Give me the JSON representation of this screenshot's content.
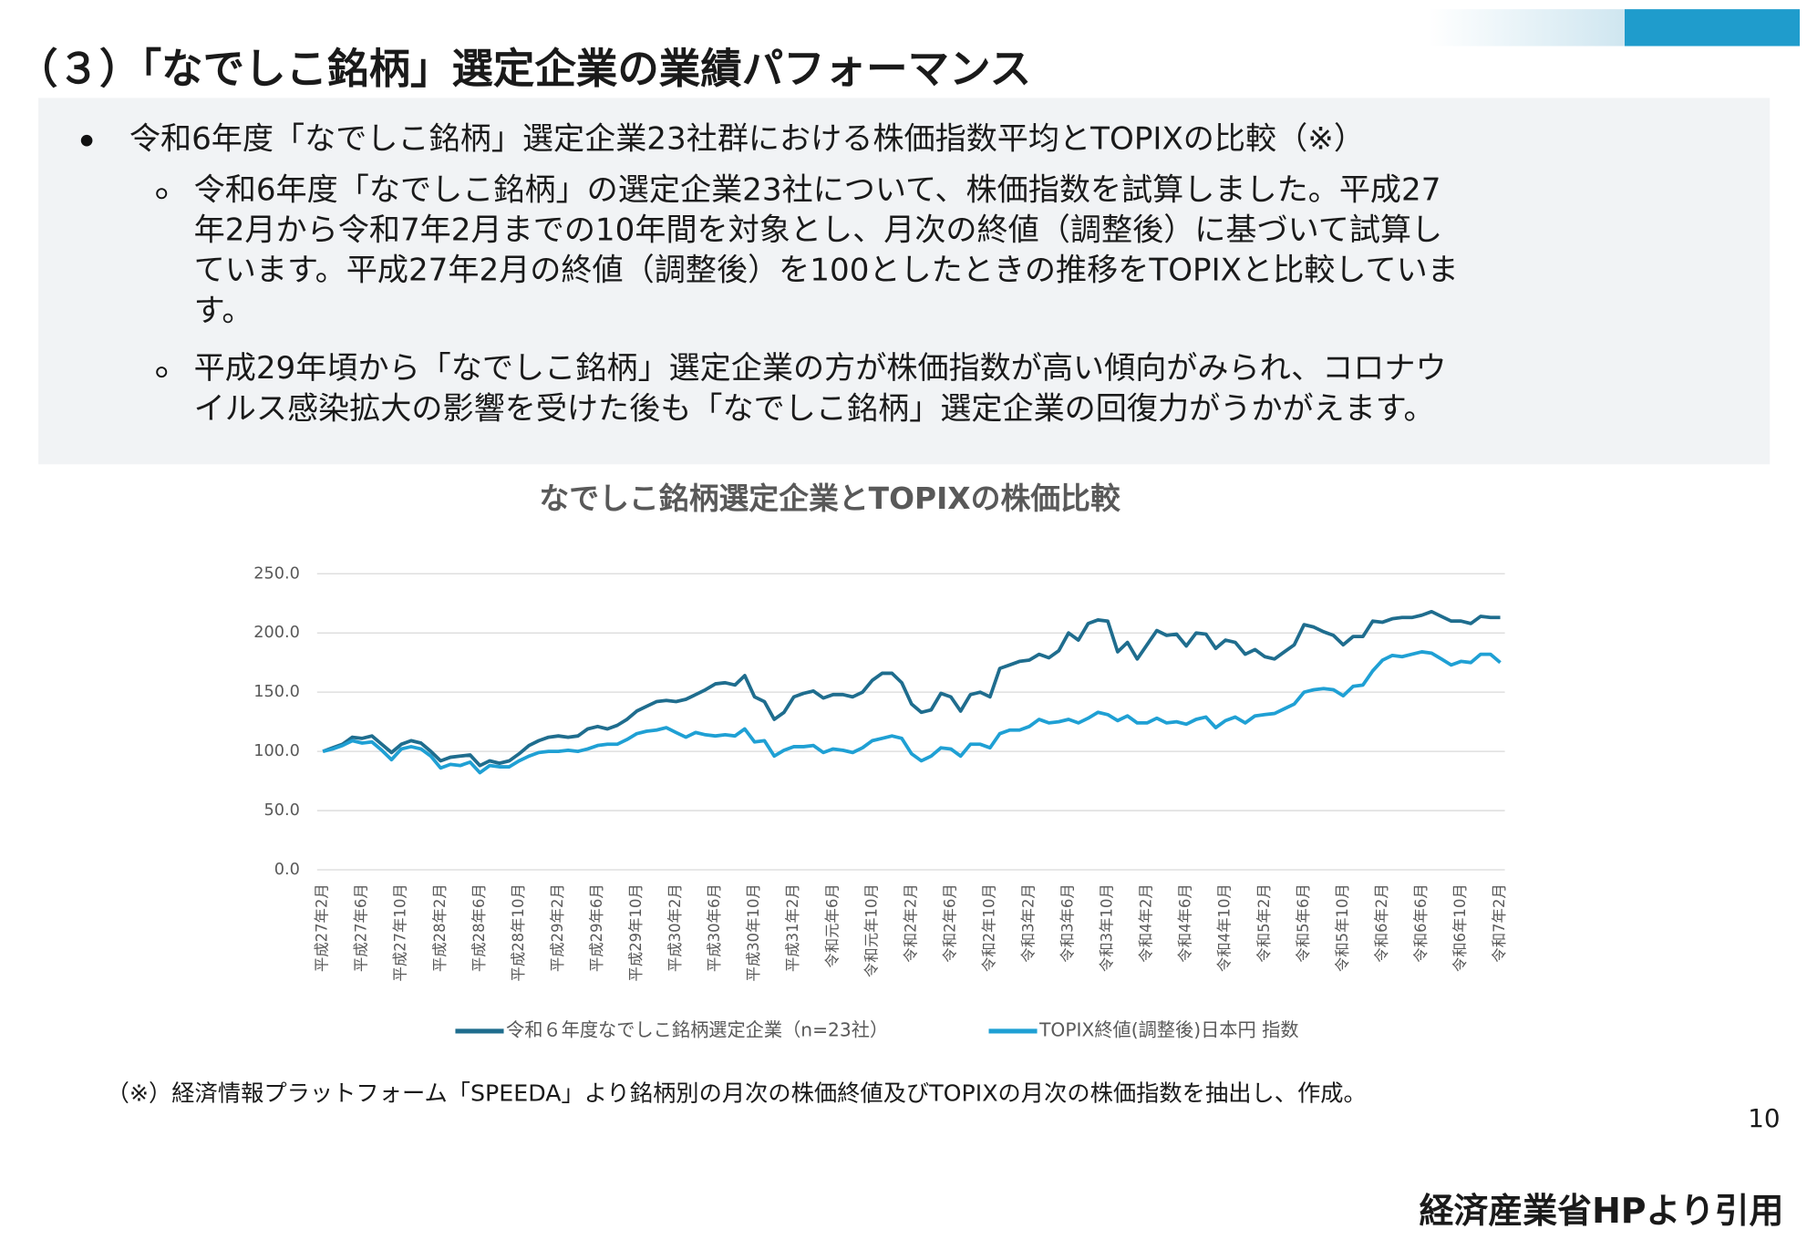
{
  "header": {
    "title": "（３）「なでしこ銘柄」選定企業の業績パフォーマンス"
  },
  "bullet": {
    "text": "令和6年度「なでしこ銘柄」選定企業23社群における株価指数平均とTOPIXの比較（※）",
    "items": [
      [
        "令和6年度「なでしこ銘柄」の選定企業23社について、株価指数を試算しました。平成27",
        "年2月から令和7年2月までの10年間を対象とし、月次の終値（調整後）に基づいて試算し",
        "ています。平成27年2月の終値（調整後）を100としたときの推移をTOPIXと比較していま",
        "す。"
      ],
      [
        "平成29年頃から「なでしこ銘柄」選定企業の方が株価指数が高い傾向がみられ、コロナウ",
        "イルス感染拡大の影響を受けた後も「なでしこ銘柄」選定企業の回復力がうかがえます。"
      ]
    ]
  },
  "chart_data": {
    "type": "line",
    "title": "なでしこ銘柄選定企業とTOPIXの株価比較",
    "categories": [
      "平成27年2月",
      null,
      null,
      null,
      "平成27年6月",
      null,
      null,
      null,
      "平成27年10月",
      null,
      null,
      null,
      "平成28年2月",
      null,
      null,
      null,
      "平成28年6月",
      null,
      null,
      null,
      "平成28年10月",
      null,
      null,
      null,
      "平成29年2月",
      null,
      null,
      null,
      "平成29年6月",
      null,
      null,
      null,
      "平成29年10月",
      null,
      null,
      null,
      "平成30年2月",
      null,
      null,
      null,
      "平成30年6月",
      null,
      null,
      null,
      "平成30年10月",
      null,
      null,
      null,
      "平成31年2月",
      null,
      null,
      null,
      "令和元年6月",
      null,
      null,
      null,
      "令和元年10月",
      null,
      null,
      null,
      "令和2年2月",
      null,
      null,
      null,
      "令和2年6月",
      null,
      null,
      null,
      "令和2年10月",
      null,
      null,
      null,
      "令和3年2月",
      null,
      null,
      null,
      "令和3年6月",
      null,
      null,
      null,
      "令和3年10月",
      null,
      null,
      null,
      "令和4年2月",
      null,
      null,
      null,
      "令和4年6月",
      null,
      null,
      null,
      "令和4年10月",
      null,
      null,
      null,
      "令和5年2月",
      null,
      null,
      null,
      "令和5年6月",
      null,
      null,
      null,
      "令和5年10月",
      null,
      null,
      null,
      "令和6年2月",
      null,
      null,
      null,
      "令和6年6月",
      null,
      null,
      null,
      "令和6年10月",
      null,
      null,
      null,
      "令和7年2月"
    ],
    "series": [
      {
        "name": "令和６年度なでしこ銘柄選定企業（n=23社）",
        "color": "#1f6d8e",
        "values": [
          100,
          103,
          106,
          112,
          111,
          113,
          106,
          99,
          106,
          109,
          107,
          100,
          92,
          95,
          96,
          97,
          88,
          92,
          90,
          92,
          98,
          105,
          109,
          112,
          113,
          112,
          113,
          119,
          121,
          119,
          122,
          127,
          134,
          138,
          142,
          143,
          142,
          144,
          148,
          152,
          157,
          158,
          156,
          164,
          146,
          142,
          127,
          133,
          146,
          149,
          151,
          145,
          148,
          148,
          146,
          150,
          160,
          166,
          166,
          158,
          140,
          133,
          135,
          149,
          146,
          134,
          148,
          150,
          146,
          170,
          173,
          176,
          177,
          182,
          179,
          185,
          200,
          194,
          208,
          211,
          210,
          184,
          192,
          178,
          190,
          202,
          198,
          199,
          189,
          200,
          199,
          187,
          194,
          192,
          182,
          186,
          180,
          178,
          184,
          190,
          207,
          205,
          201,
          198,
          190,
          197,
          197,
          210,
          209,
          212,
          213,
          213,
          215,
          218,
          214,
          210,
          210,
          208,
          214,
          213,
          213
        ]
      },
      {
        "name": "TOPIX終値(調整後)日本円 指数",
        "color": "#1fa0d4",
        "values": [
          100,
          102,
          105,
          109,
          107,
          108,
          101,
          93,
          102,
          104,
          102,
          96,
          86,
          89,
          88,
          91,
          82,
          88,
          87,
          87,
          92,
          96,
          99,
          100,
          100,
          101,
          100,
          102,
          105,
          106,
          106,
          110,
          115,
          117,
          118,
          120,
          116,
          112,
          116,
          114,
          113,
          114,
          113,
          119,
          108,
          109,
          96,
          101,
          104,
          104,
          105,
          99,
          102,
          101,
          99,
          103,
          109,
          111,
          113,
          111,
          98,
          92,
          96,
          103,
          102,
          96,
          106,
          106,
          103,
          115,
          118,
          118,
          121,
          127,
          124,
          125,
          127,
          124,
          128,
          133,
          131,
          126,
          130,
          124,
          124,
          128,
          124,
          125,
          123,
          127,
          129,
          120,
          126,
          129,
          124,
          130,
          131,
          132,
          136,
          140,
          150,
          152,
          153,
          152,
          147,
          155,
          156,
          168,
          177,
          181,
          180,
          182,
          184,
          183,
          178,
          173,
          176,
          175,
          182,
          182,
          175
        ]
      }
    ],
    "ylim": [
      0,
      250
    ],
    "yticks": [
      {
        "value": 0,
        "label": "0.0"
      },
      {
        "value": 50,
        "label": "50.0"
      },
      {
        "value": 100,
        "label": "100.0"
      },
      {
        "value": 150,
        "label": "150.0"
      },
      {
        "value": 200,
        "label": "200.0"
      },
      {
        "value": 250,
        "label": "250.0"
      }
    ],
    "grid": true,
    "legend": "bottom"
  },
  "footnote": "（※）経済情報プラットフォーム「SPEEDA」より銘柄別の月次の株価終値及びTOPIXの月次の株価指数を抽出し、作成。",
  "page_number": "10",
  "source_note": "経済産業省HPより引用"
}
